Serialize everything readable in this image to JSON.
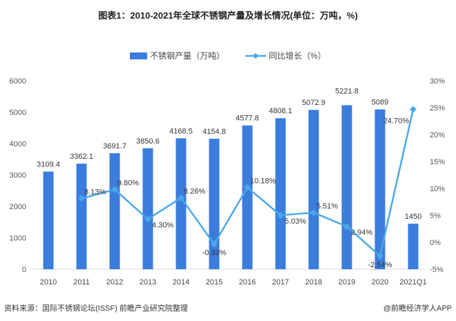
{
  "title": "图表1：2010-2021年全球不锈钢产量及增长情况(单位：万吨，%)",
  "source": "资料来源：国际不锈钢论坛(ISSF) 前瞻产业研究院整理",
  "credit": "@前瞻经济学人APP",
  "chart_data": {
    "type": "bar+line",
    "title": "图表1：2010-2021年全球不锈钢产量及增长情况(单位：万吨，%)",
    "categories": [
      "2010",
      "2011",
      "2012",
      "2013",
      "2014",
      "2015",
      "2016",
      "2017",
      "2018",
      "2019",
      "2020",
      "2021Q1"
    ],
    "series": [
      {
        "name": "不锈钢产量（万吨）",
        "type": "bar",
        "axis": "left",
        "color": "#3b7ddd",
        "values": [
          3109.4,
          3362.1,
          3691.7,
          3850.6,
          4168.5,
          4154.8,
          4577.8,
          4808.1,
          5072.9,
          5221.8,
          5089,
          1450
        ],
        "labels": [
          "3109.4",
          "3362.1",
          "3691.7",
          "3850.6",
          "4168.5",
          "4154.8",
          "4577.8",
          "4808.1",
          "5072.9",
          "5221.8",
          "5089",
          "1450"
        ]
      },
      {
        "name": "同比增长（%）",
        "type": "line",
        "axis": "right",
        "color": "#4aa8e8",
        "values": [
          null,
          8.13,
          9.8,
          4.3,
          8.26,
          -0.33,
          10.18,
          5.03,
          5.51,
          2.94,
          -2.54,
          24.7
        ],
        "labels": [
          "",
          "8.13%",
          "9.80%",
          "4.30%",
          "8.26%",
          "-0.33%",
          "10.18%",
          "5.03%",
          "5.51%",
          "2.94%",
          "-2.54%",
          "24.70%"
        ]
      }
    ],
    "ylim_left": [
      0,
      6000
    ],
    "yticks_left": [
      "0",
      "1000",
      "2000",
      "3000",
      "4000",
      "5000",
      "6000"
    ],
    "ylim_right": [
      -5,
      30
    ],
    "yticks_right": [
      "-5%",
      "0%",
      "5%",
      "10%",
      "15%",
      "20%",
      "25%",
      "30%"
    ],
    "grid": false,
    "legend": "top-center"
  }
}
